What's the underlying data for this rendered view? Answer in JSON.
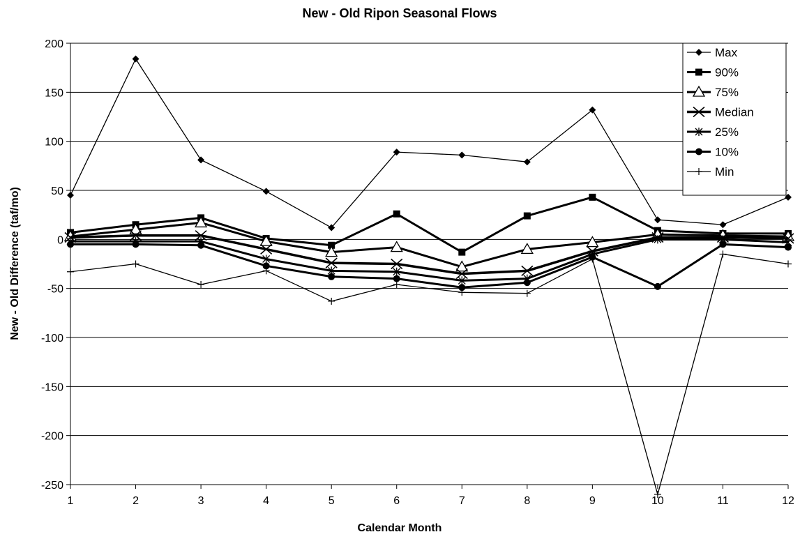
{
  "chart_data": {
    "type": "line",
    "title": "New - Old Ripon Seasonal Flows",
    "xlabel": "Calendar Month",
    "ylabel": "New - Old Difference (taf/mo)",
    "x": [
      1,
      2,
      3,
      4,
      5,
      6,
      7,
      8,
      9,
      10,
      11,
      12
    ],
    "ylim": [
      -250,
      200
    ],
    "yticks": [
      200,
      150,
      100,
      50,
      0,
      -50,
      -100,
      -150,
      -200,
      -250
    ],
    "grid": "horizontal",
    "legend": "top-right",
    "series": [
      {
        "name": "Max",
        "marker": "diamond",
        "values": [
          45,
          184,
          81,
          49,
          12,
          89,
          86,
          79,
          132,
          20,
          15,
          43
        ]
      },
      {
        "name": "90%",
        "marker": "square",
        "values": [
          7,
          15,
          22,
          1,
          -6,
          26,
          -13,
          24,
          43,
          9,
          6,
          6
        ]
      },
      {
        "name": "75%",
        "marker": "triangle-open",
        "values": [
          3,
          10,
          17,
          -2,
          -13,
          -8,
          -28,
          -10,
          -3,
          5,
          4,
          3
        ]
      },
      {
        "name": "Median",
        "marker": "x",
        "values": [
          2,
          4,
          4,
          -10,
          -24,
          -25,
          -35,
          -32,
          -12,
          2,
          2,
          1
        ]
      },
      {
        "name": "25%",
        "marker": "asterisk",
        "values": [
          -2,
          -2,
          -2,
          -20,
          -32,
          -33,
          -42,
          -40,
          -15,
          0,
          0,
          -3
        ]
      },
      {
        "name": "10%",
        "marker": "circle",
        "values": [
          -5,
          -5,
          -6,
          -27,
          -38,
          -40,
          -49,
          -44,
          -18,
          -48,
          -5,
          -8
        ]
      },
      {
        "name": "Min",
        "marker": "plus",
        "values": [
          -33,
          -25,
          -46,
          -32,
          -63,
          -46,
          -54,
          -55,
          -20,
          -260,
          -15,
          -25
        ]
      }
    ]
  }
}
